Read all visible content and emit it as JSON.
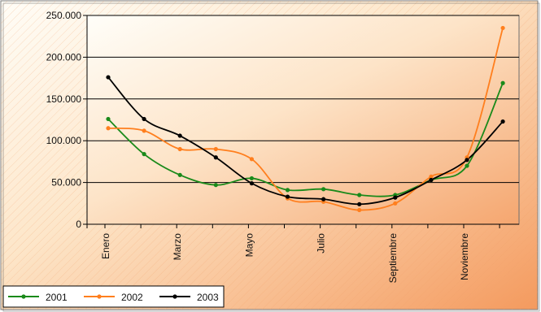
{
  "chart_data": {
    "type": "line",
    "title": "",
    "xlabel": "",
    "ylabel": "",
    "ylim": [
      0,
      250000
    ],
    "yticks": [
      0,
      50000,
      100000,
      150000,
      200000,
      250000
    ],
    "ytick_labels": [
      "0",
      "50.000",
      "100.000",
      "150.000",
      "200.000",
      "250.000"
    ],
    "x_positions": [
      1,
      2,
      3,
      4,
      5,
      6,
      7,
      8,
      9,
      10,
      11,
      12
    ],
    "x_tick_labels": [
      {
        "x": 1,
        "label": "Enero"
      },
      {
        "x": 3,
        "label": "Marzo"
      },
      {
        "x": 5,
        "label": "Mayo"
      },
      {
        "x": 7,
        "label": "Julio"
      },
      {
        "x": 9,
        "label": "Septiembre"
      },
      {
        "x": 11,
        "label": "Noviembre"
      }
    ],
    "grid": true,
    "legend_position": "bottom-left",
    "series": [
      {
        "name": "2001",
        "color": "#1a8a1a",
        "values": [
          126000,
          84000,
          59000,
          47000,
          55000,
          41000,
          42000,
          35000,
          35000,
          53000,
          70000,
          169000
        ]
      },
      {
        "name": "2002",
        "color": "#ff7f1e",
        "values": [
          115000,
          112000,
          90000,
          90000,
          78000,
          31000,
          27000,
          17000,
          25000,
          57000,
          80000,
          235000
        ]
      },
      {
        "name": "2003",
        "color": "#000000",
        "values": [
          176000,
          126000,
          106000,
          80000,
          49000,
          33000,
          30000,
          24000,
          32000,
          53000,
          77000,
          123000
        ]
      }
    ]
  }
}
